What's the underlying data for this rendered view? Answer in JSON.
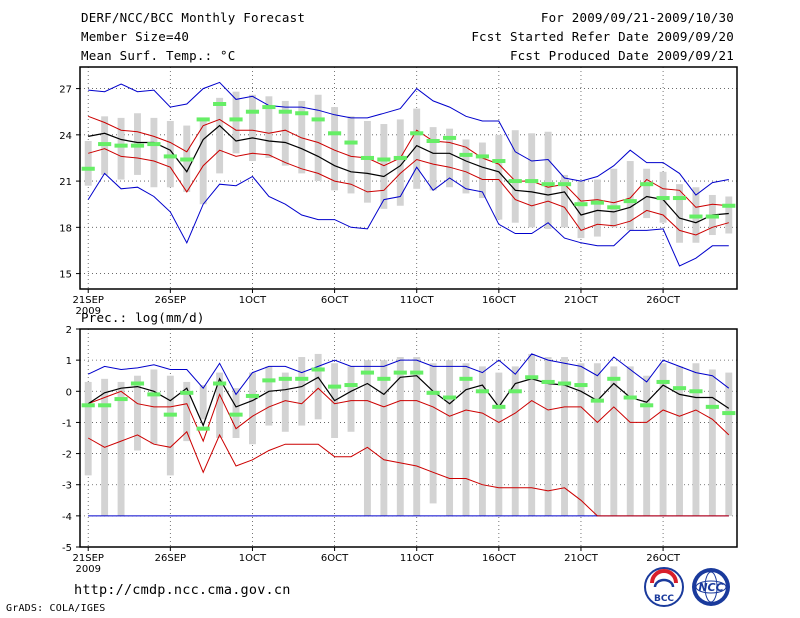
{
  "header": {
    "title": "DERF/NCC/BCC Monthly Forecast",
    "member_size": "Member Size=40",
    "variable": "Mean Surf. Temp.: °C",
    "period": "For 2009/09/21-2009/10/30",
    "started": "Fcst Started Refer Date 2009/09/20",
    "produced": "Fcst Produced Date 2009/09/21"
  },
  "footer": {
    "url": "http://cmdp.ncc.cma.gov.cn",
    "credit": "GrADS: COLA/IGES"
  },
  "logos": {
    "bcc": "BCC",
    "ncc": "NCC"
  },
  "colors": {
    "box": "#d3d3d3",
    "median": "#66ee66",
    "mean": "#000000",
    "spread": "#cc0000",
    "extreme": "#0000cc"
  },
  "chart_data": [
    {
      "type": "line",
      "title": "Mean Surf. Temp.: °C",
      "ylim": [
        14,
        28.4
      ],
      "yticks": [
        15,
        18,
        21,
        24,
        27
      ],
      "xlim": [
        -0.5,
        39.5
      ],
      "xticks": [
        {
          "x": 0,
          "label": "21SEP",
          "sub": "2009"
        },
        {
          "x": 5,
          "label": "26SEP"
        },
        {
          "x": 10,
          "label": "1OCT"
        },
        {
          "x": 15,
          "label": "6OCT"
        },
        {
          "x": 20,
          "label": "11OCT"
        },
        {
          "x": 25,
          "label": "16OCT"
        },
        {
          "x": 30,
          "label": "21OCT"
        },
        {
          "x": 35,
          "label": "26OCT"
        }
      ],
      "box_low": [
        20.7,
        21.4,
        21.1,
        21.4,
        20.6,
        20.6,
        20.3,
        19.5,
        21.5,
        22.8,
        22.3,
        22.5,
        22.0,
        21.5,
        21.0,
        20.4,
        20.2,
        19.6,
        19.2,
        19.4,
        20.5,
        20.4,
        20.6,
        20.2,
        19.9,
        18.5,
        18.3,
        18.0,
        17.9,
        18.0,
        17.3,
        17.4,
        18.0,
        17.8,
        18.6,
        18.3,
        17.0,
        17.0,
        17.5,
        17.6
      ],
      "box_high": [
        23.6,
        25.2,
        25.1,
        25.4,
        25.1,
        24.9,
        24.6,
        24.9,
        26.4,
        26.8,
        26.6,
        26.5,
        26.2,
        26.2,
        26.6,
        25.8,
        25.2,
        24.9,
        24.7,
        25.0,
        25.7,
        24.5,
        24.4,
        23.7,
        23.5,
        24.0,
        24.3,
        24.1,
        24.2,
        21.4,
        21.0,
        21.1,
        21.8,
        22.3,
        21.8,
        21.6,
        20.8,
        20.6,
        20.1,
        20.0
      ],
      "median": [
        21.8,
        23.4,
        23.3,
        23.3,
        23.4,
        22.6,
        22.4,
        25.0,
        26.0,
        25.0,
        25.5,
        25.8,
        25.5,
        25.4,
        25.0,
        24.1,
        23.5,
        22.5,
        22.4,
        22.5,
        24.1,
        23.6,
        23.8,
        22.7,
        22.6,
        22.3,
        21.0,
        21.0,
        20.8,
        20.8,
        19.5,
        19.6,
        19.3,
        19.7,
        20.8,
        19.9,
        19.9,
        18.7,
        18.7,
        19.4
      ],
      "series": [
        {
          "name": "ensemble max",
          "role": "extreme",
          "values": [
            19.8,
            21.5,
            20.5,
            20.6,
            20.0,
            19.0,
            17.0,
            19.5,
            20.8,
            20.7,
            21.3,
            20.0,
            19.5,
            18.8,
            18.5,
            18.5,
            18.0,
            17.9,
            19.8,
            20.0,
            21.9,
            20.4,
            21.2,
            20.5,
            20.3,
            18.2,
            17.6,
            17.6,
            18.3,
            17.3,
            17.0,
            16.8,
            16.8,
            17.8,
            17.8,
            17.9,
            15.5,
            16.0,
            16.8,
            16.8
          ]
        },
        {
          "name": "ensemble min",
          "role": "extreme",
          "values": [
            26.9,
            26.8,
            27.3,
            26.8,
            26.9,
            25.8,
            26.0,
            27.0,
            27.4,
            26.3,
            26.5,
            25.9,
            25.8,
            25.8,
            25.6,
            25.3,
            25.1,
            25.1,
            25.4,
            25.7,
            27.0,
            26.2,
            25.8,
            25.2,
            24.9,
            24.9,
            22.9,
            22.3,
            22.4,
            21.2,
            21.0,
            21.3,
            22.0,
            23.0,
            22.2,
            22.2,
            21.5,
            20.1,
            20.9,
            21.1
          ]
        },
        {
          "name": "mean + spread",
          "role": "spread",
          "values": [
            25.2,
            24.8,
            24.3,
            24.2,
            23.9,
            23.5,
            22.9,
            24.6,
            25.0,
            24.3,
            24.3,
            24.1,
            24.3,
            23.8,
            23.5,
            23.0,
            22.6,
            22.5,
            22.0,
            22.5,
            24.3,
            23.6,
            23.5,
            23.2,
            22.5,
            22.1,
            21.0,
            21.0,
            20.6,
            20.8,
            19.7,
            19.8,
            19.6,
            19.9,
            21.1,
            20.5,
            20.4,
            19.3,
            19.5,
            19.4
          ]
        },
        {
          "name": "mean - spread",
          "role": "spread",
          "values": [
            22.8,
            23.1,
            22.6,
            22.5,
            22.3,
            21.9,
            20.3,
            22.0,
            23.0,
            22.6,
            22.8,
            22.7,
            22.2,
            21.8,
            21.5,
            21.0,
            20.8,
            20.3,
            20.4,
            21.5,
            22.4,
            22.1,
            21.9,
            21.6,
            21.1,
            21.1,
            19.8,
            19.4,
            19.7,
            19.3,
            17.8,
            18.2,
            18.1,
            18.4,
            19.1,
            18.8,
            17.8,
            17.5,
            18.0,
            18.3
          ]
        },
        {
          "name": "ensemble mean",
          "role": "mean",
          "values": [
            23.9,
            24.1,
            23.7,
            23.5,
            23.5,
            23.0,
            21.6,
            23.7,
            24.6,
            23.6,
            23.8,
            23.6,
            23.5,
            23.1,
            22.6,
            22.0,
            21.6,
            21.5,
            21.3,
            22.0,
            23.3,
            22.8,
            22.8,
            22.3,
            21.9,
            21.6,
            20.4,
            20.3,
            20.1,
            20.3,
            18.8,
            19.1,
            19.0,
            19.3,
            20.0,
            19.8,
            18.6,
            18.3,
            18.8,
            18.9
          ]
        }
      ]
    },
    {
      "type": "line",
      "title": "Prec.: log(mm/d)",
      "ylim": [
        -5,
        2
      ],
      "yticks": [
        -5,
        -4,
        -3,
        -2,
        -1,
        0,
        1,
        2
      ],
      "xlim": [
        -0.5,
        39.5
      ],
      "xticks": [
        {
          "x": 0,
          "label": "21SEP",
          "sub": "2009"
        },
        {
          "x": 5,
          "label": "26SEP"
        },
        {
          "x": 10,
          "label": "1OCT"
        },
        {
          "x": 15,
          "label": "6OCT"
        },
        {
          "x": 20,
          "label": "11OCT"
        },
        {
          "x": 25,
          "label": "16OCT"
        },
        {
          "x": 30,
          "label": "21OCT"
        },
        {
          "x": 35,
          "label": "26OCT"
        }
      ],
      "box_low": [
        -2.7,
        -4.0,
        -4.0,
        -1.9,
        -1.7,
        -2.7,
        -1.6,
        -0.9,
        -1.5,
        -1.5,
        -1.7,
        -1.1,
        -1.3,
        -1.1,
        -0.9,
        -1.5,
        -1.3,
        -4.0,
        -4.0,
        -4.0,
        -4.0,
        -3.6,
        -4.0,
        -4.0,
        -4.0,
        -4.0,
        -4.0,
        -4.0,
        -4.0,
        -4.0,
        -4.0,
        -4.0,
        -4.0,
        -4.0,
        -4.0,
        -4.0,
        -4.0,
        -4.0,
        -4.0,
        -4.0
      ],
      "box_high": [
        0.3,
        0.4,
        0.3,
        0.5,
        0.7,
        0.5,
        0.3,
        0.2,
        0.6,
        0.1,
        0.6,
        0.8,
        0.6,
        1.1,
        1.2,
        0.9,
        0.8,
        1.0,
        1.0,
        1.1,
        1.1,
        0.9,
        1.0,
        0.9,
        0.8,
        0.6,
        0.8,
        1.2,
        1.1,
        1.1,
        0.9,
        0.9,
        0.8,
        0.8,
        0.5,
        0.9,
        0.8,
        0.9,
        0.7,
        0.6
      ],
      "median": [
        -0.45,
        -0.45,
        -0.25,
        0.25,
        -0.1,
        -0.75,
        -0.05,
        -1.2,
        0.25,
        -0.75,
        -0.15,
        0.35,
        0.4,
        0.4,
        0.7,
        0.15,
        0.2,
        0.6,
        0.4,
        0.6,
        0.6,
        -0.05,
        -0.2,
        0.4,
        0.0,
        -0.5,
        0.0,
        0.45,
        0.3,
        0.25,
        0.2,
        -0.3,
        0.4,
        -0.2,
        -0.45,
        0.3,
        0.1,
        0.0,
        -0.5,
        -0.7
      ],
      "series": [
        {
          "name": "ensemble max",
          "role": "extreme",
          "values": [
            0.55,
            0.8,
            0.7,
            0.75,
            0.85,
            0.7,
            0.7,
            0.1,
            0.9,
            -0.1,
            0.6,
            0.8,
            0.8,
            0.6,
            0.8,
            1.0,
            0.8,
            0.8,
            0.8,
            1.0,
            1.0,
            0.8,
            0.8,
            0.8,
            0.6,
            1.0,
            0.55,
            1.2,
            1.0,
            0.9,
            0.8,
            0.5,
            1.1,
            0.7,
            0.3,
            1.0,
            0.8,
            0.6,
            0.5,
            0.1
          ]
        },
        {
          "name": "ensemble min",
          "role": "extreme",
          "values": [
            -4.0,
            -4.0,
            -4.0,
            -4.0,
            -4.0,
            -4.0,
            -4.0,
            -4.0,
            -4.0,
            -4.0,
            -4.0,
            -4.0,
            -4.0,
            -4.0,
            -4.0,
            -4.0,
            -4.0,
            -4.0,
            -4.0,
            -4.0,
            -4.0,
            -4.0,
            -4.0,
            -4.0,
            -4.0,
            -4.0,
            -4.0,
            -4.0,
            -4.0,
            -4.0,
            -4.0,
            -4.0,
            -4.0,
            -4.0,
            -4.0,
            -4.0,
            -4.0,
            -4.0,
            -4.0,
            -4.0
          ]
        },
        {
          "name": "mean + spread",
          "role": "spread",
          "values": [
            -0.4,
            -0.2,
            0.0,
            -0.4,
            -0.5,
            -0.5,
            -0.4,
            -1.6,
            -0.1,
            -1.2,
            -0.8,
            -0.5,
            -0.3,
            -0.4,
            0.1,
            -0.4,
            -0.3,
            -0.3,
            -0.5,
            -0.3,
            -0.3,
            -0.5,
            -0.8,
            -0.6,
            -0.7,
            -1.0,
            -0.7,
            -0.3,
            -0.6,
            -0.5,
            -0.5,
            -1.0,
            -0.5,
            -1.0,
            -1.0,
            -0.6,
            -0.8,
            -0.6,
            -0.9,
            -1.4
          ]
        },
        {
          "name": "mean - spread",
          "role": "spread",
          "values": [
            -1.5,
            -1.8,
            -1.6,
            -1.4,
            -1.7,
            -1.8,
            -1.3,
            -2.6,
            -1.4,
            -2.4,
            -2.2,
            -1.9,
            -1.7,
            -1.7,
            -1.7,
            -2.1,
            -2.1,
            -1.8,
            -2.2,
            -2.3,
            -2.4,
            -2.6,
            -2.8,
            -2.8,
            -3.0,
            -3.1,
            -3.1,
            -3.1,
            -3.2,
            -3.1,
            -3.5,
            -4.0,
            -4.0,
            -4.0,
            -4.0,
            -4.0,
            -4.0,
            -4.0,
            -4.0,
            -4.0
          ]
        },
        {
          "name": "ensemble mean",
          "role": "mean",
          "values": [
            -0.4,
            -0.05,
            0.1,
            0.15,
            0.0,
            -0.3,
            0.1,
            -1.1,
            0.4,
            -0.5,
            -0.3,
            0.0,
            0.05,
            0.15,
            0.45,
            -0.3,
            0.0,
            0.25,
            -0.1,
            0.45,
            0.5,
            0.0,
            -0.4,
            0.05,
            0.2,
            -0.5,
            0.25,
            0.4,
            0.25,
            0.2,
            0.0,
            -0.3,
            0.25,
            -0.2,
            -0.35,
            0.2,
            -0.1,
            -0.2,
            -0.2,
            -0.55
          ]
        }
      ]
    }
  ]
}
